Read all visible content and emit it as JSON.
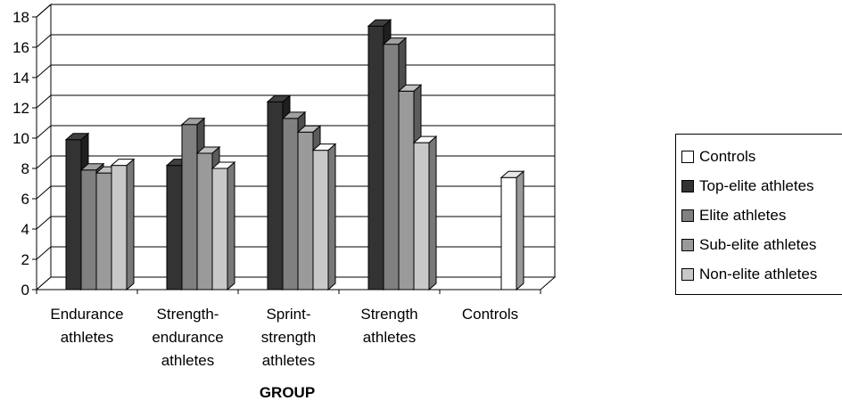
{
  "chart_data": {
    "type": "bar",
    "title": "",
    "xlabel": "GROUP",
    "ylabel": "",
    "ylim": [
      0,
      18
    ],
    "yticks": [
      "0",
      "2",
      "4",
      "6",
      "8",
      "10",
      "12",
      "14",
      "16",
      "18"
    ],
    "grid": true,
    "legend_position": "right",
    "categories": [
      [
        "Endurance",
        "athletes"
      ],
      [
        "Strength-",
        "endurance",
        "athletes"
      ],
      [
        "Sprint-",
        "strength",
        "athletes"
      ],
      [
        "Strength",
        "athletes"
      ],
      [
        "Controls"
      ]
    ],
    "series": [
      {
        "name": "Controls",
        "color": "#ffffff",
        "values": [
          null,
          null,
          null,
          null,
          7.4
        ]
      },
      {
        "name": "Top-elite athletes",
        "color": "#333333",
        "values": [
          9.9,
          8.2,
          12.4,
          17.4,
          null
        ]
      },
      {
        "name": "Elite athletes",
        "color": "#808080",
        "values": [
          7.9,
          10.9,
          11.3,
          16.2,
          null
        ]
      },
      {
        "name": "Sub-elite athletes",
        "color": "#9a9a9a",
        "values": [
          7.7,
          9.0,
          10.4,
          13.1,
          null
        ]
      },
      {
        "name": "Non-elite athletes",
        "color": "#c8c8c8",
        "values": [
          8.2,
          8.0,
          9.2,
          9.7,
          null
        ]
      }
    ]
  }
}
